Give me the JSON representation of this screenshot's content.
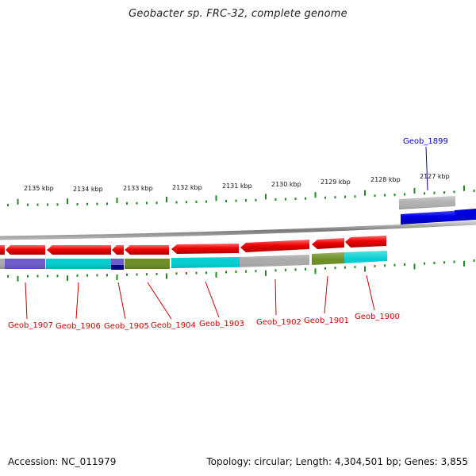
{
  "header": {
    "title": "Geobacter sp. FRC-32, complete genome"
  },
  "footer": {
    "accession": "Accession: NC_011979",
    "summary": "Topology: circular; Length: 4,304,501 bp; Genes: 3,855"
  },
  "colors": {
    "forward_label": "#0000cc",
    "reverse_label": "#cc0000",
    "tick": "#228B22",
    "backbone": "#8c8c8c"
  },
  "ruler": [
    "2135 kbp",
    "2134 kbp",
    "2133 kbp",
    "2132 kbp",
    "2131 kbp",
    "2130 kbp",
    "2129 kbp",
    "2128 kbp",
    "2127 kbp"
  ],
  "genes": [
    {
      "name": "Geob_1907",
      "strand": "reverse",
      "cog_color": "#6a5acd"
    },
    {
      "name": "Geob_1906",
      "strand": "reverse",
      "cog_color": "#00ced1"
    },
    {
      "name": "Geob_1905",
      "strand": "reverse",
      "cog_color": "#00008b"
    },
    {
      "name": "Geob_1904",
      "strand": "reverse",
      "cog_color": "#6b8e23"
    },
    {
      "name": "Geob_1903",
      "strand": "reverse",
      "cog_color": "#00ced1"
    },
    {
      "name": "Geob_1902",
      "strand": "reverse",
      "cog_color": "#aaaaaa"
    },
    {
      "name": "Geob_1901",
      "strand": "reverse",
      "cog_color": "#6b8e23"
    },
    {
      "name": "Geob_1900",
      "strand": "reverse",
      "cog_color": "#00ced1"
    },
    {
      "name": "Geob_1899",
      "strand": "forward",
      "cog_color": "#aaaaaa"
    }
  ]
}
